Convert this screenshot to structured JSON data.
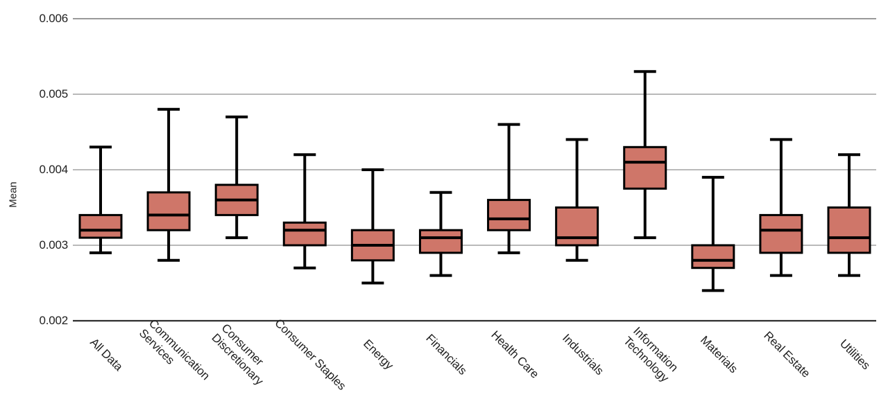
{
  "chart_data": {
    "type": "box",
    "title": "",
    "xlabel": "",
    "ylabel": "Mean",
    "ylim": [
      0.002,
      0.006
    ],
    "ytick_labels": [
      "0.002",
      "0.003",
      "0.004",
      "0.005",
      "0.006"
    ],
    "grid": "horizontal gridlines on, legend none, x tick labels rotated 45deg",
    "categories": [
      "All Data",
      "Communication Services",
      "Consumer Discretionary",
      "Consumer Staples",
      "Energy",
      "Financials",
      "Health Care",
      "Industrials",
      "Information Technology",
      "Materials",
      "Real Estate",
      "Utilities"
    ],
    "series": [
      {
        "name": "All Data",
        "whisker_low": 0.0029,
        "q1": 0.0031,
        "median": 0.0032,
        "q3": 0.0034,
        "whisker_high": 0.0043
      },
      {
        "name": "Communication Services",
        "whisker_low": 0.0028,
        "q1": 0.0032,
        "median": 0.0034,
        "q3": 0.0037,
        "whisker_high": 0.0048
      },
      {
        "name": "Consumer Discretionary",
        "whisker_low": 0.0031,
        "q1": 0.0034,
        "median": 0.0036,
        "q3": 0.0038,
        "whisker_high": 0.0047
      },
      {
        "name": "Consumer Staples",
        "whisker_low": 0.0027,
        "q1": 0.003,
        "median": 0.0032,
        "q3": 0.0033,
        "whisker_high": 0.0042
      },
      {
        "name": "Energy",
        "whisker_low": 0.0025,
        "q1": 0.0028,
        "median": 0.003,
        "q3": 0.0032,
        "whisker_high": 0.004
      },
      {
        "name": "Financials",
        "whisker_low": 0.0026,
        "q1": 0.0029,
        "median": 0.0031,
        "q3": 0.0032,
        "whisker_high": 0.0037
      },
      {
        "name": "Health Care",
        "whisker_low": 0.0029,
        "q1": 0.0032,
        "median": 0.00335,
        "q3": 0.0036,
        "whisker_high": 0.0046
      },
      {
        "name": "Industrials",
        "whisker_low": 0.0028,
        "q1": 0.003,
        "median": 0.0031,
        "q3": 0.0035,
        "whisker_high": 0.0044
      },
      {
        "name": "Information Technology",
        "whisker_low": 0.0031,
        "q1": 0.00375,
        "median": 0.0041,
        "q3": 0.0043,
        "whisker_high": 0.0053
      },
      {
        "name": "Materials",
        "whisker_low": 0.0024,
        "q1": 0.0027,
        "median": 0.0028,
        "q3": 0.003,
        "whisker_high": 0.0039
      },
      {
        "name": "Real Estate",
        "whisker_low": 0.0026,
        "q1": 0.0029,
        "median": 0.0032,
        "q3": 0.0034,
        "whisker_high": 0.0044
      },
      {
        "name": "Utilities",
        "whisker_low": 0.0026,
        "q1": 0.0029,
        "median": 0.0031,
        "q3": 0.0035,
        "whisker_high": 0.0042
      }
    ],
    "colors": {
      "box_fill": "#cf7669",
      "box_stroke": "#000000",
      "median_line": "#000000",
      "whisker": "#000000",
      "gridline": "#a2a2a2",
      "top_gridline": "#999999",
      "axis_line": "#2d2d2d",
      "text": "#1f1f1f",
      "background": "#ffffff"
    }
  }
}
